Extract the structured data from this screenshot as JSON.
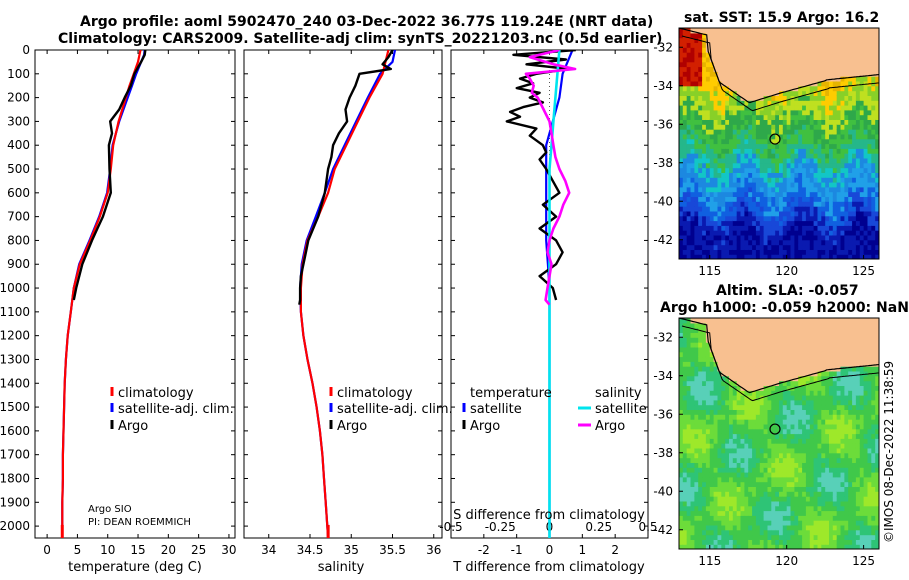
{
  "title_line1": "Argo profile: aoml 5902470_240 03-Dec-2022 36.77S 119.24E (NRT data)",
  "title_line2": "Climatology: CARS2009. Satellite-adj clim: synTS_20221203.nc (0.5d earlier)",
  "sst_title": "sat. SST: 15.9 Argo: 16.2",
  "sla_title1": "Altim. SLA: -0.057",
  "sla_title2": "Argo h1000: -0.059 h2000: NaN",
  "footer_credit": "©IMOS 08-Dec-2022 11:38:59",
  "colors": {
    "climatology": "#ff0000",
    "satellite": "#0000ff",
    "argo": "#000000",
    "sat_diff_salinity": "#00e5ee",
    "argo_diff_salinity": "#ff00ff",
    "land": "#f8c090"
  },
  "chart_data": [
    {
      "type": "line",
      "name": "temperature",
      "xlabel": "temperature (deg C)",
      "ylabel": "",
      "xlim": [
        -2,
        31
      ],
      "ylim": [
        2050,
        0
      ],
      "xticks": [
        0,
        5,
        10,
        15,
        20,
        25,
        30
      ],
      "yticks": [
        0,
        100,
        200,
        300,
        400,
        500,
        600,
        700,
        800,
        900,
        1000,
        1100,
        1200,
        1300,
        1400,
        1500,
        1600,
        1700,
        1800,
        1900,
        2000
      ],
      "legend": [
        "climatology",
        "satellite-adj. clim.",
        "Argo"
      ],
      "credit": [
        "Argo SIO",
        "PI: DEAN ROEMMICH"
      ],
      "series": [
        {
          "name": "satellite-adj. clim.",
          "depth": [
            0,
            20,
            50,
            100,
            150,
            200,
            300,
            400,
            500,
            600,
            700,
            800,
            900,
            1000,
            1100,
            1200,
            1300,
            1400,
            1500,
            1600,
            1700,
            1800,
            1900,
            2000,
            2050
          ],
          "values": [
            16.1,
            16.0,
            15.5,
            14.7,
            14.0,
            13.3,
            11.9,
            10.8,
            10.4,
            9.9,
            8.6,
            7.0,
            5.3,
            4.4,
            3.9,
            3.4,
            3.1,
            2.9,
            2.8,
            2.7,
            2.6,
            2.6,
            2.5,
            2.5,
            2.5
          ]
        },
        {
          "name": "climatology",
          "depth": [
            0,
            50,
            100,
            150,
            200,
            300,
            400,
            500,
            600,
            700,
            800,
            900,
            1000,
            1100,
            1200,
            1300,
            1400,
            1500,
            1600,
            1700,
            1800,
            1900,
            2000,
            2050
          ],
          "values": [
            15.4,
            15.0,
            14.3,
            13.6,
            13.0,
            11.8,
            10.9,
            10.5,
            10.0,
            8.7,
            7.1,
            5.4,
            4.4,
            3.9,
            3.4,
            3.1,
            2.9,
            2.8,
            2.7,
            2.6,
            2.6,
            2.5,
            2.5,
            2.5
          ]
        },
        {
          "name": "Argo",
          "depth": [
            0,
            20,
            50,
            100,
            150,
            200,
            250,
            300,
            350,
            400,
            500,
            600,
            700,
            750,
            800,
            900,
            1000,
            1050
          ],
          "values": [
            16.2,
            16.1,
            15.5,
            14.4,
            13.8,
            12.8,
            11.9,
            10.4,
            10.7,
            10.2,
            10.3,
            10.5,
            9.2,
            8.3,
            7.4,
            5.8,
            4.8,
            4.4
          ]
        }
      ]
    },
    {
      "type": "line",
      "name": "salinity",
      "xlabel": "salinity",
      "ylabel": "",
      "xlim": [
        33.7,
        36.1
      ],
      "ylim": [
        2050,
        0
      ],
      "xticks": [
        34,
        34.5,
        35,
        35.5,
        36
      ],
      "legend": [
        "climatology",
        "satellite-adj. clim.",
        "Argo"
      ],
      "series": [
        {
          "name": "satellite-adj. clim.",
          "depth": [
            0,
            50,
            100,
            200,
            300,
            400,
            500,
            600,
            700,
            800,
            900,
            1000,
            1100,
            1200,
            1300,
            1400,
            1500,
            1600,
            1700,
            1800,
            1900,
            2000,
            2050
          ],
          "values": [
            35.53,
            35.5,
            35.35,
            35.2,
            35.06,
            34.92,
            34.78,
            34.68,
            34.57,
            34.46,
            34.4,
            34.38,
            34.39,
            34.42,
            34.47,
            34.53,
            34.58,
            34.62,
            34.65,
            34.67,
            34.69,
            34.71,
            34.72
          ]
        },
        {
          "name": "climatology",
          "depth": [
            0,
            100,
            200,
            300,
            400,
            500,
            600,
            700,
            800,
            900,
            1000,
            1100,
            1200,
            1300,
            1400,
            1500,
            1600,
            1700,
            1800,
            1900,
            2000,
            2050
          ],
          "values": [
            35.45,
            35.38,
            35.22,
            35.08,
            34.94,
            34.8,
            34.72,
            34.6,
            34.47,
            34.41,
            34.39,
            34.39,
            34.42,
            34.47,
            34.53,
            34.58,
            34.62,
            34.65,
            34.67,
            34.69,
            34.71,
            34.72
          ]
        },
        {
          "name": "Argo",
          "depth": [
            0,
            30,
            60,
            80,
            100,
            150,
            200,
            250,
            300,
            350,
            400,
            450,
            500,
            600,
            700,
            800,
            850,
            900,
            950,
            1000,
            1050,
            1070
          ],
          "values": [
            35.5,
            35.45,
            35.38,
            35.48,
            35.1,
            35.05,
            34.98,
            34.93,
            34.95,
            34.85,
            34.78,
            34.76,
            34.72,
            34.68,
            34.6,
            34.48,
            34.45,
            34.42,
            34.39,
            34.38,
            34.38,
            34.37
          ]
        }
      ]
    },
    {
      "type": "line",
      "name": "difference",
      "xlabel": "T difference from climatology",
      "xlabel_top": "S difference from climatology",
      "xlim": [
        -3,
        3
      ],
      "ylim": [
        2050,
        0
      ],
      "xticks": [
        -2,
        -1,
        0,
        1,
        2
      ],
      "s_ticks": [
        -0.5,
        -0.25,
        0,
        0.25,
        0.5
      ],
      "legend_temperature": [
        "temperature",
        "satellite",
        "Argo"
      ],
      "legend_salinity": [
        "salinity",
        "satellite",
        "Argo"
      ],
      "series": [
        {
          "name": "temperature satellite",
          "depth": [
            0,
            100,
            200,
            300,
            400,
            500,
            600,
            700,
            800,
            900,
            1000,
            1100,
            1200,
            1300,
            1400,
            1500,
            1600,
            1700,
            1800,
            1900,
            2000,
            2050
          ],
          "values": [
            0.7,
            0.4,
            0.3,
            0.1,
            -0.1,
            -0.1,
            -0.1,
            -0.1,
            -0.1,
            -0.05,
            0,
            0,
            0,
            0,
            0,
            0,
            0,
            0,
            0,
            0,
            0,
            0
          ]
        },
        {
          "name": "temperature Argo",
          "depth": [
            0,
            20,
            40,
            60,
            80,
            100,
            120,
            140,
            160,
            180,
            200,
            220,
            240,
            260,
            280,
            300,
            330,
            360,
            400,
            430,
            460,
            500,
            550,
            600,
            650,
            700,
            750,
            800,
            850,
            900,
            950,
            1000,
            1050
          ],
          "values": [
            0.8,
            -1.1,
            0.5,
            -0.7,
            0.6,
            -0.4,
            -0.9,
            -0.5,
            -1.0,
            -0.3,
            -0.6,
            -0.2,
            -0.8,
            -1.2,
            -0.9,
            -1.3,
            -0.4,
            -0.6,
            -0.2,
            -0.1,
            -0.3,
            -0.1,
            0.1,
            0.3,
            -0.2,
            0.2,
            -0.3,
            0.2,
            0.4,
            0.2,
            -0.3,
            0.1,
            0.2
          ]
        },
        {
          "name": "salinity satellite",
          "depth": [
            0,
            100,
            200,
            300,
            400,
            500,
            600,
            700,
            800,
            900,
            1000,
            1100,
            1200,
            1300,
            1400,
            1500,
            1600,
            1700,
            1800,
            1900,
            2000,
            2050
          ],
          "values": [
            0.05,
            0.04,
            0.03,
            0.02,
            0.01,
            0.0,
            0.0,
            0.0,
            0.0,
            0.0,
            0.0,
            0.0,
            0.0,
            0.0,
            0.0,
            0.0,
            0.0,
            0.0,
            0.0,
            0.0,
            0.0,
            0.0
          ]
        },
        {
          "name": "salinity Argo",
          "depth": [
            0,
            30,
            60,
            80,
            100,
            120,
            150,
            180,
            200,
            250,
            300,
            350,
            400,
            450,
            500,
            550,
            600,
            650,
            700,
            750,
            800,
            850,
            900,
            950,
            1000,
            1050,
            1070
          ],
          "values": [
            0.05,
            -0.1,
            0.02,
            0.13,
            -0.12,
            -0.1,
            -0.08,
            -0.09,
            -0.06,
            -0.03,
            0.0,
            0.01,
            0.02,
            0.03,
            0.05,
            0.08,
            0.1,
            0.07,
            0.05,
            0.02,
            0.0,
            -0.01,
            0.01,
            0.0,
            -0.01,
            -0.02,
            0.0
          ]
        }
      ]
    },
    {
      "type": "heatmap",
      "name": "sat-sst-map",
      "title": "sat. SST: 15.9 Argo: 16.2",
      "xlim": [
        113,
        126
      ],
      "ylim": [
        -43,
        -31
      ],
      "xticks": [
        115,
        120,
        125
      ],
      "yticks": [
        -32,
        -34,
        -36,
        -38,
        -40,
        -42
      ],
      "argo_position": [
        119.24,
        -36.77
      ]
    },
    {
      "type": "heatmap",
      "name": "altim-sla-map",
      "title": "Altim. SLA: -0.057",
      "xlim": [
        113,
        126
      ],
      "ylim": [
        -43,
        -31
      ],
      "xticks": [
        115,
        120,
        125
      ],
      "yticks": [
        -32,
        -34,
        -36,
        -38,
        -40,
        -42
      ],
      "argo_position": [
        119.24,
        -36.77
      ]
    }
  ]
}
